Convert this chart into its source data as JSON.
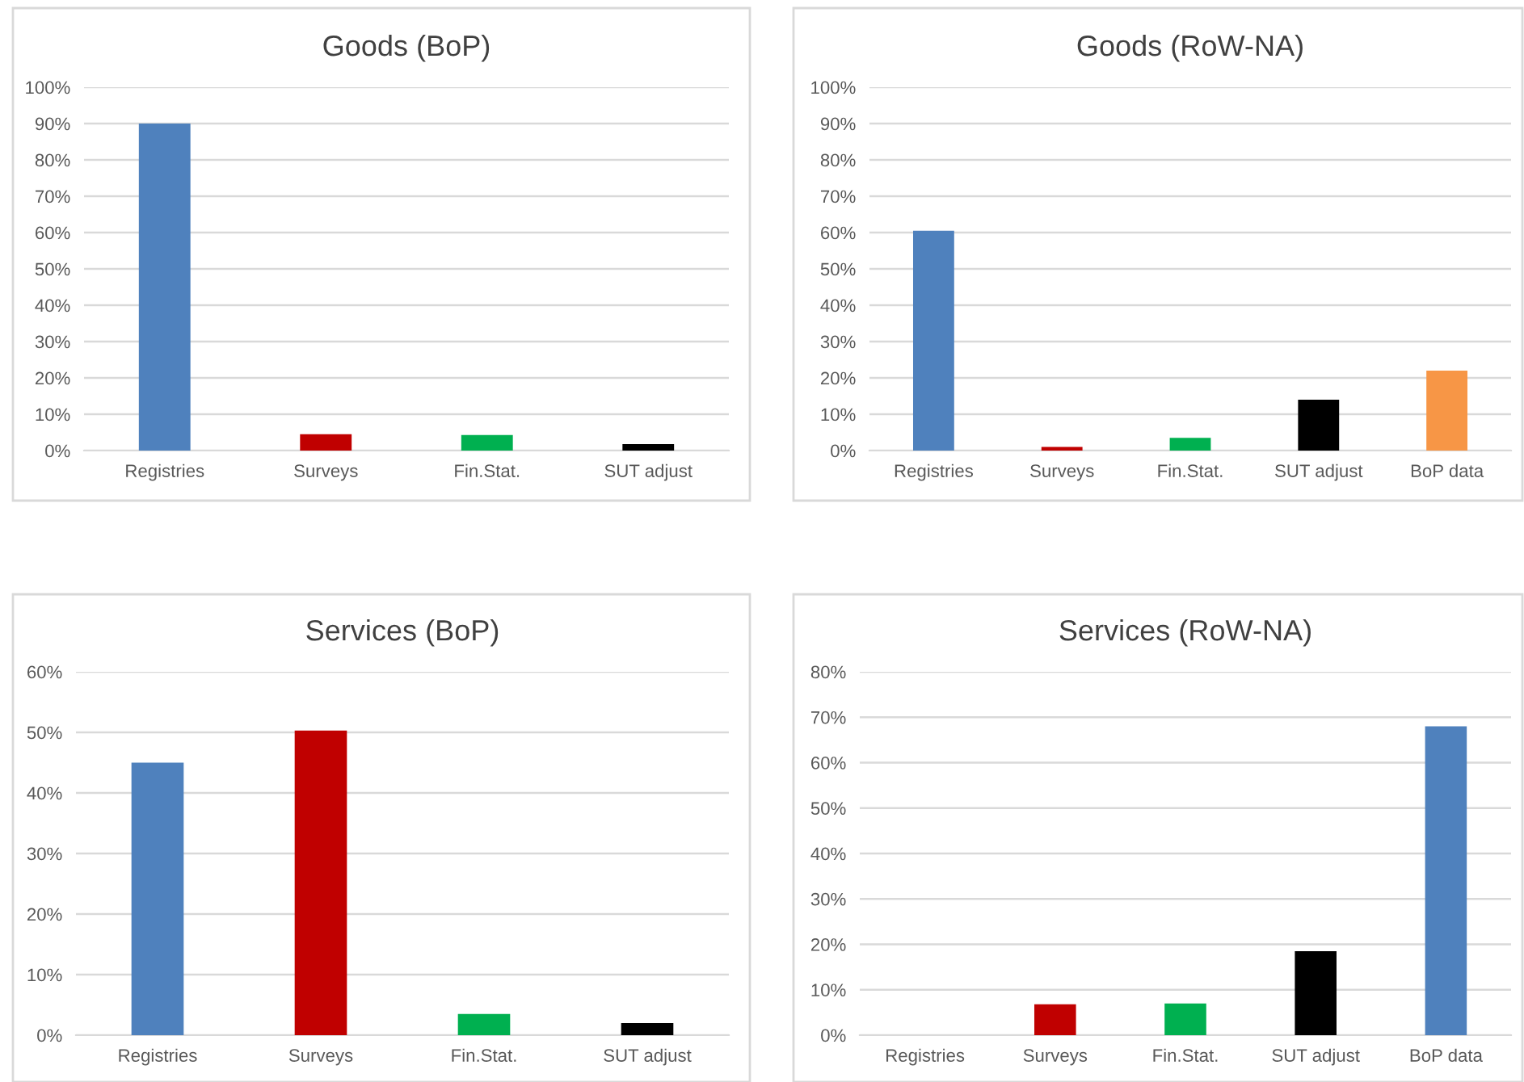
{
  "chart_data": [
    {
      "type": "bar",
      "title": "Goods (BoP)",
      "categories": [
        "Registries",
        "Surveys",
        "Fin.Stat.",
        "SUT adjust"
      ],
      "values": [
        90,
        4.5,
        4.3,
        1.8
      ],
      "colors": [
        "#4f81bd",
        "#c00000",
        "#00b050",
        "#000000"
      ],
      "ylim": [
        0,
        100
      ],
      "yticks": [
        {
          "value": 0,
          "label": "0%"
        },
        {
          "value": 10,
          "label": "10%"
        },
        {
          "value": 20,
          "label": "20%"
        },
        {
          "value": 30,
          "label": "30%"
        },
        {
          "value": 40,
          "label": "40%"
        },
        {
          "value": 50,
          "label": "50%"
        },
        {
          "value": 60,
          "label": "60%"
        },
        {
          "value": 70,
          "label": "70%"
        },
        {
          "value": 80,
          "label": "80%"
        },
        {
          "value": 90,
          "label": "90%"
        },
        {
          "value": 100,
          "label": "100%"
        }
      ],
      "grid": "y"
    },
    {
      "type": "bar",
      "title": "Goods (RoW-NA)",
      "categories": [
        "Registries",
        "Surveys",
        "Fin.Stat.",
        "SUT adjust",
        "BoP data"
      ],
      "values": [
        60.5,
        1,
        3.5,
        14,
        22
      ],
      "colors": [
        "#4f81bd",
        "#c00000",
        "#00b050",
        "#000000",
        "#f79646"
      ],
      "ylim": [
        0,
        100
      ],
      "yticks": [
        {
          "value": 0,
          "label": "0%"
        },
        {
          "value": 10,
          "label": "10%"
        },
        {
          "value": 20,
          "label": "20%"
        },
        {
          "value": 30,
          "label": "30%"
        },
        {
          "value": 40,
          "label": "40%"
        },
        {
          "value": 50,
          "label": "50%"
        },
        {
          "value": 60,
          "label": "60%"
        },
        {
          "value": 70,
          "label": "70%"
        },
        {
          "value": 80,
          "label": "80%"
        },
        {
          "value": 90,
          "label": "90%"
        },
        {
          "value": 100,
          "label": "100%"
        }
      ],
      "grid": "y"
    },
    {
      "type": "bar",
      "title": "Services (BoP)",
      "categories": [
        "Registries",
        "Surveys",
        "Fin.Stat.",
        "SUT adjust"
      ],
      "values": [
        45,
        50.3,
        3.5,
        2
      ],
      "colors": [
        "#4f81bd",
        "#c00000",
        "#00b050",
        "#000000"
      ],
      "ylim": [
        0,
        60
      ],
      "yticks": [
        {
          "value": 0,
          "label": "0%"
        },
        {
          "value": 10,
          "label": "10%"
        },
        {
          "value": 20,
          "label": "20%"
        },
        {
          "value": 30,
          "label": "30%"
        },
        {
          "value": 40,
          "label": "40%"
        },
        {
          "value": 50,
          "label": "50%"
        },
        {
          "value": 60,
          "label": "60%"
        }
      ],
      "grid": "y"
    },
    {
      "type": "bar",
      "title": "Services (RoW-NA)",
      "categories": [
        "Registries",
        "Surveys",
        "Fin.Stat.",
        "SUT adjust",
        "BoP data"
      ],
      "values": [
        0,
        6.8,
        7,
        18.5,
        68
      ],
      "colors": [
        "#4f81bd",
        "#c00000",
        "#00b050",
        "#000000",
        "#4f81bd"
      ],
      "ylim": [
        0,
        80
      ],
      "yticks": [
        {
          "value": 0,
          "label": "0%"
        },
        {
          "value": 10,
          "label": "10%"
        },
        {
          "value": 20,
          "label": "20%"
        },
        {
          "value": 30,
          "label": "30%"
        },
        {
          "value": 40,
          "label": "40%"
        },
        {
          "value": 50,
          "label": "50%"
        },
        {
          "value": 60,
          "label": "60%"
        },
        {
          "value": 70,
          "label": "70%"
        },
        {
          "value": 80,
          "label": "80%"
        }
      ],
      "grid": "y"
    }
  ]
}
